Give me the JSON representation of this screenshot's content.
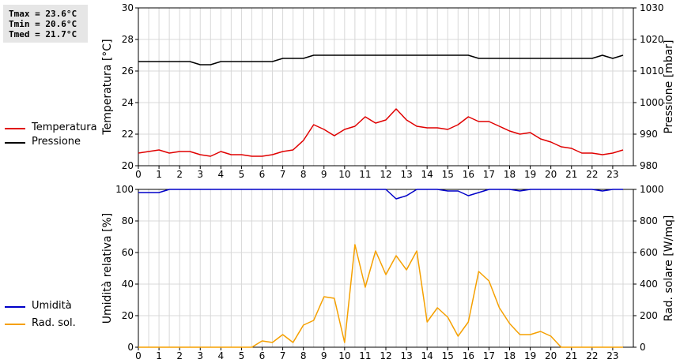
{
  "stats": {
    "tmax": "Tmax = 23.6°C",
    "tmin": "Tmin = 20.6°C",
    "tmed": "Tmed = 21.7°C"
  },
  "colors": {
    "temperatura": "#e00000",
    "pressione": "#000000",
    "umidita": "#0000c8",
    "radsol": "#f5a000",
    "grid": "#d8d8d8"
  },
  "legend": {
    "top": [
      {
        "label": "Temperatura",
        "color": "#e00000"
      },
      {
        "label": "Pressione",
        "color": "#000000"
      }
    ],
    "bottom": [
      {
        "label": "Umidità",
        "color": "#0000c8"
      },
      {
        "label": "Rad. sol.",
        "color": "#f5a000"
      }
    ]
  },
  "chart_data": [
    {
      "type": "line",
      "xlabel": "",
      "ylabel": "Temperatura [°C]",
      "y2label": "Pressione [mbar]",
      "xlim": [
        0,
        24
      ],
      "ylim": [
        20,
        30
      ],
      "y2lim": [
        980,
        1030
      ],
      "xticks": [
        "0",
        "1",
        "2",
        "3",
        "4",
        "5",
        "6",
        "7",
        "8",
        "9",
        "10",
        "11",
        "12",
        "13",
        "14",
        "15",
        "16",
        "17",
        "18",
        "19",
        "20",
        "21",
        "22",
        "23"
      ],
      "yticks": [
        "20",
        "22",
        "24",
        "26",
        "28",
        "30"
      ],
      "y2ticks": [
        "980",
        "990",
        "1000",
        "1010",
        "1020",
        "1030"
      ],
      "grid": true,
      "series": [
        {
          "name": "Temperatura",
          "axis": "left",
          "x": [
            0,
            0.5,
            1,
            1.5,
            2,
            2.5,
            3,
            3.5,
            4,
            4.5,
            5,
            5.5,
            6,
            6.5,
            7,
            7.5,
            8,
            8.5,
            9,
            9.5,
            10,
            10.5,
            11,
            11.5,
            12,
            12.5,
            13,
            13.5,
            14,
            14.5,
            15,
            15.5,
            16,
            16.5,
            17,
            17.5,
            18,
            18.5,
            19,
            19.5,
            20,
            20.5,
            21,
            21.5,
            22,
            22.5,
            23,
            23.5
          ],
          "values": [
            20.8,
            20.9,
            21.0,
            20.8,
            20.9,
            20.9,
            20.7,
            20.6,
            20.9,
            20.7,
            20.7,
            20.6,
            20.6,
            20.7,
            20.9,
            21.0,
            21.6,
            22.6,
            22.3,
            21.9,
            22.3,
            22.5,
            23.1,
            22.7,
            22.9,
            23.6,
            22.9,
            22.5,
            22.4,
            22.4,
            22.3,
            22.6,
            23.1,
            22.8,
            22.8,
            22.5,
            22.2,
            22.0,
            22.1,
            21.7,
            21.5,
            21.2,
            21.1,
            20.8,
            20.8,
            20.7,
            20.8,
            21.0
          ]
        },
        {
          "name": "Pressione",
          "axis": "right",
          "x": [
            0,
            0.5,
            1,
            1.5,
            2,
            2.5,
            3,
            3.5,
            4,
            4.5,
            5,
            5.5,
            6,
            6.5,
            7,
            7.5,
            8,
            8.5,
            9,
            9.5,
            10,
            10.5,
            11,
            11.5,
            12,
            12.5,
            13,
            13.5,
            14,
            14.5,
            15,
            15.5,
            16,
            16.5,
            17,
            17.5,
            18,
            18.5,
            19,
            19.5,
            20,
            20.5,
            21,
            21.5,
            22,
            22.5,
            23,
            23.5
          ],
          "values": [
            1013,
            1013,
            1013,
            1013,
            1013,
            1013,
            1012,
            1012,
            1013,
            1013,
            1013,
            1013,
            1013,
            1013,
            1014,
            1014,
            1014,
            1015,
            1015,
            1015,
            1015,
            1015,
            1015,
            1015,
            1015,
            1015,
            1015,
            1015,
            1015,
            1015,
            1015,
            1015,
            1015,
            1014,
            1014,
            1014,
            1014,
            1014,
            1014,
            1014,
            1014,
            1014,
            1014,
            1014,
            1014,
            1015,
            1014,
            1015
          ]
        }
      ]
    },
    {
      "type": "line",
      "xlabel": "",
      "ylabel": "Umidità relativa [%]",
      "y2label": "Rad. solare [W/mq]",
      "xlim": [
        0,
        24
      ],
      "ylim": [
        0,
        100
      ],
      "y2lim": [
        0,
        1000
      ],
      "xticks": [
        "0",
        "1",
        "2",
        "3",
        "4",
        "5",
        "6",
        "7",
        "8",
        "9",
        "10",
        "11",
        "12",
        "13",
        "14",
        "15",
        "16",
        "17",
        "18",
        "19",
        "20",
        "21",
        "22",
        "23"
      ],
      "yticks": [
        "0",
        "20",
        "40",
        "60",
        "80",
        "100"
      ],
      "y2ticks": [
        "0",
        "200",
        "400",
        "600",
        "800",
        "1000"
      ],
      "grid": true,
      "series": [
        {
          "name": "Umidità",
          "axis": "left",
          "x": [
            0,
            0.5,
            1,
            1.5,
            2,
            2.5,
            3,
            3.5,
            4,
            4.5,
            5,
            5.5,
            6,
            6.5,
            7,
            7.5,
            8,
            8.5,
            9,
            9.5,
            10,
            10.5,
            11,
            11.5,
            12,
            12.5,
            13,
            13.5,
            14,
            14.5,
            15,
            15.5,
            16,
            16.5,
            17,
            17.5,
            18,
            18.5,
            19,
            19.5,
            20,
            20.5,
            21,
            21.5,
            22,
            22.5,
            23,
            23.5
          ],
          "values": [
            98,
            98,
            98,
            100,
            100,
            100,
            100,
            100,
            100,
            100,
            100,
            100,
            100,
            100,
            100,
            100,
            100,
            100,
            100,
            100,
            100,
            100,
            100,
            100,
            100,
            94,
            96,
            100,
            100,
            100,
            99,
            99,
            96,
            98,
            100,
            100,
            100,
            99,
            100,
            100,
            100,
            100,
            100,
            100,
            100,
            99,
            100,
            100
          ]
        },
        {
          "name": "Rad. sol.",
          "axis": "right",
          "x": [
            0,
            0.5,
            1,
            1.5,
            2,
            2.5,
            3,
            3.5,
            4,
            4.5,
            5,
            5.5,
            6,
            6.5,
            7,
            7.5,
            8,
            8.5,
            9,
            9.5,
            10,
            10.5,
            11,
            11.5,
            12,
            12.5,
            13,
            13.5,
            14,
            14.5,
            15,
            15.5,
            16,
            16.5,
            17,
            17.5,
            18,
            18.5,
            19,
            19.5,
            20,
            20.5,
            21,
            21.5,
            22,
            22.5,
            23,
            23.5
          ],
          "values": [
            0,
            0,
            0,
            0,
            0,
            0,
            0,
            0,
            0,
            0,
            0,
            0,
            40,
            30,
            80,
            30,
            140,
            170,
            320,
            310,
            30,
            650,
            380,
            610,
            460,
            580,
            490,
            610,
            160,
            250,
            190,
            70,
            160,
            480,
            420,
            250,
            150,
            80,
            80,
            100,
            70,
            0,
            0,
            0,
            0,
            0,
            0,
            0
          ]
        }
      ]
    }
  ]
}
